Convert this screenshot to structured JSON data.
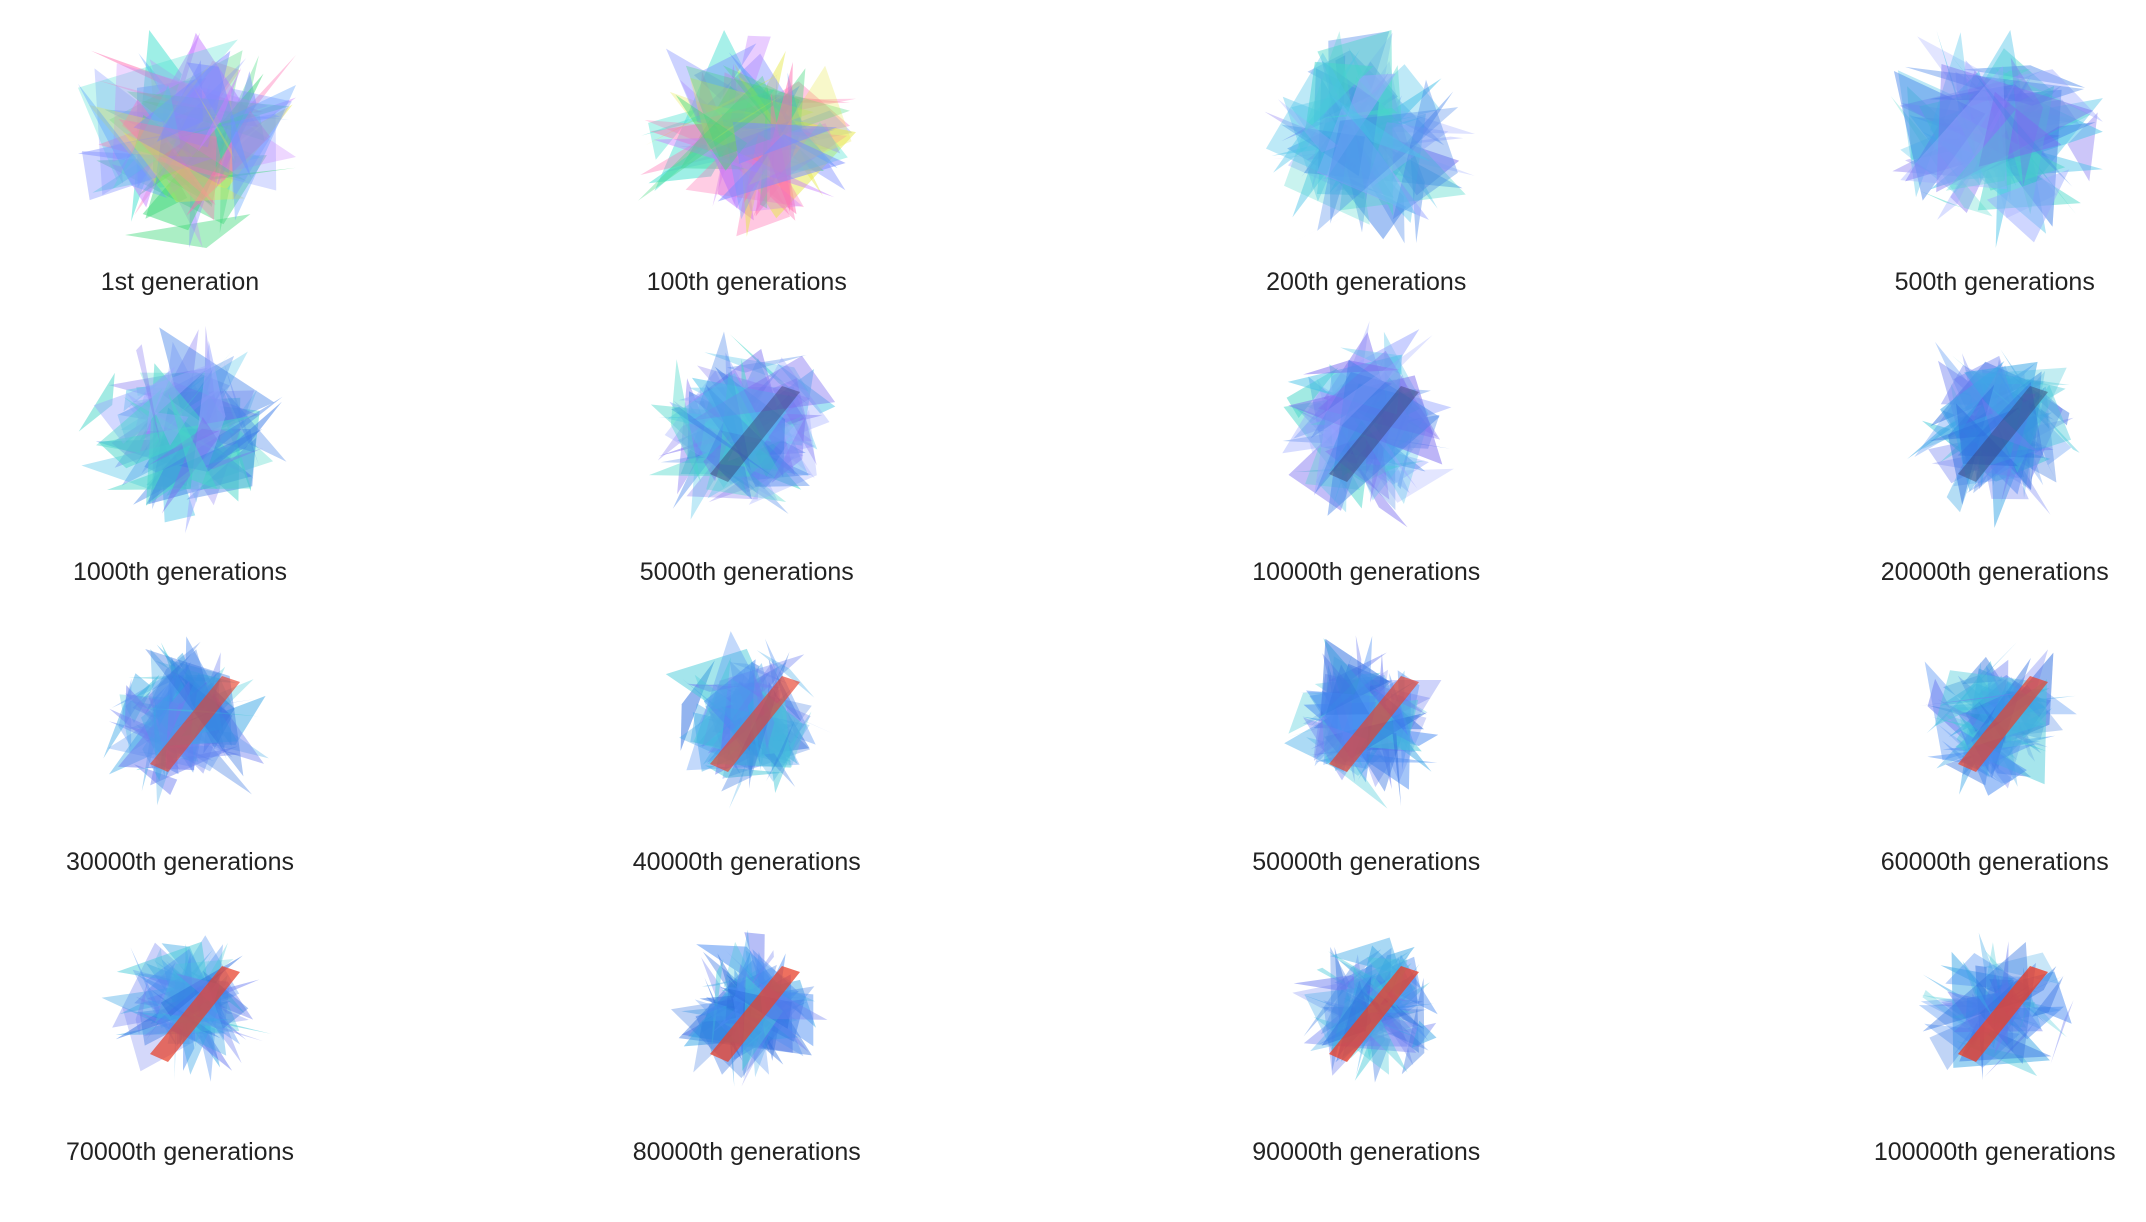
{
  "gallery": {
    "items": [
      {
        "label": "1st generation",
        "stage": 0
      },
      {
        "label": "100th generations",
        "stage": 1
      },
      {
        "label": "200th generations",
        "stage": 2
      },
      {
        "label": "500th generations",
        "stage": 3
      },
      {
        "label": "1000th generations",
        "stage": 4
      },
      {
        "label": "5000th generations",
        "stage": 5
      },
      {
        "label": "10000th generations",
        "stage": 6
      },
      {
        "label": "20000th generations",
        "stage": 7
      },
      {
        "label": "30000th generations",
        "stage": 8
      },
      {
        "label": "40000th generations",
        "stage": 9
      },
      {
        "label": "50000th generations",
        "stage": 10
      },
      {
        "label": "60000th generations",
        "stage": 11
      },
      {
        "label": "70000th generations",
        "stage": 12
      },
      {
        "label": "80000th generations",
        "stage": 13
      },
      {
        "label": "90000th generations",
        "stage": 14
      },
      {
        "label": "100000th generations",
        "stage": 15
      }
    ]
  },
  "palette": {
    "early": [
      "#3fd87a",
      "#7b8cff",
      "#c77dff",
      "#48e0d0",
      "#e6e84a",
      "#ff6fb1",
      "#5aa0ff"
    ],
    "mid": [
      "#3f7fe8",
      "#4cc3e8",
      "#7b6cf0",
      "#45d6c7",
      "#9aa7ff"
    ],
    "late": [
      "#2f6fe0",
      "#3aa6e6",
      "#4a8cf2",
      "#46c9d8",
      "#6f7ff0"
    ],
    "streak": "#e8402a"
  }
}
